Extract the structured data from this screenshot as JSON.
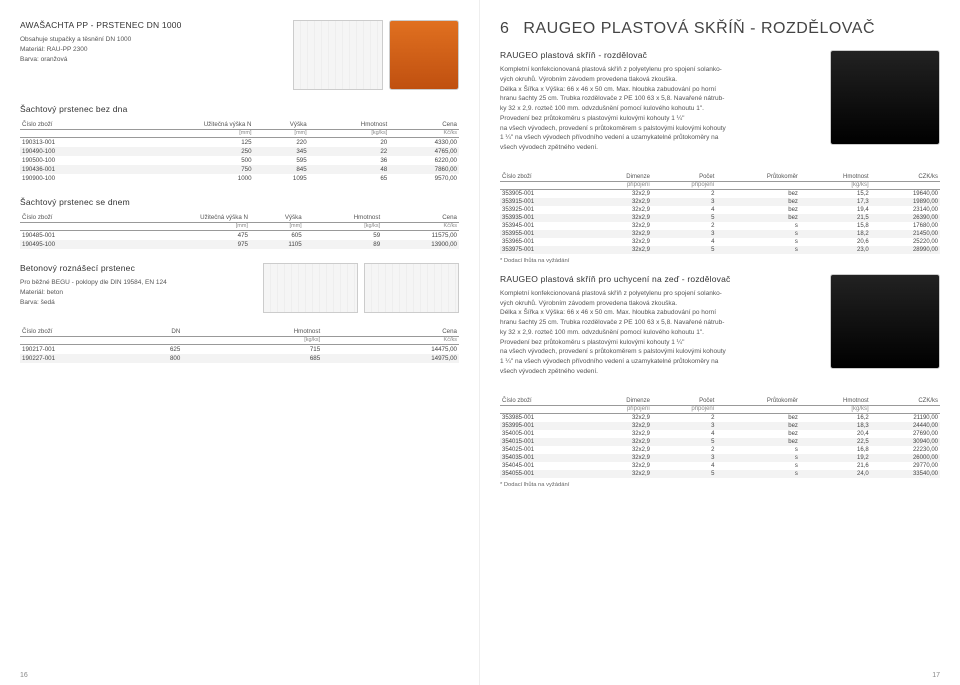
{
  "left": {
    "title": "AWAŠACHTA PP - PRSTENEC DN 1000",
    "intro": [
      "Obsahuje stupačky a těsnění DN 1000",
      "Materiál: RAU-PP 2300",
      "Barva: oranžová"
    ],
    "sec1": {
      "title": "Šachtový prstenec bez dna",
      "headers": [
        "Číslo zboží",
        "Užitečná výška N",
        "Výška",
        "Hmotnost",
        "Cena"
      ],
      "units": [
        "",
        "[mm]",
        "[mm]",
        "[kg/ks]",
        "Kč/ks"
      ],
      "rows": [
        [
          "190313-001",
          "125",
          "220",
          "20",
          "4330,00"
        ],
        [
          "190490-100",
          "250",
          "345",
          "22",
          "4765,00"
        ],
        [
          "190500-100",
          "500",
          "595",
          "36",
          "6220,00"
        ],
        [
          "190436-001",
          "750",
          "845",
          "48",
          "7860,00"
        ],
        [
          "190900-100",
          "1000",
          "1095",
          "65",
          "9570,00"
        ]
      ]
    },
    "sec2": {
      "title": "Šachtový prstenec se dnem",
      "headers": [
        "Číslo zboží",
        "Užitečná výška N",
        "Výška",
        "Hmotnost",
        "Cena"
      ],
      "units": [
        "",
        "[mm]",
        "[mm]",
        "[kg/ks]",
        "Kč/ks"
      ],
      "rows": [
        [
          "190485-001",
          "475",
          "605",
          "59",
          "11575,00"
        ],
        [
          "190495-100",
          "975",
          "1105",
          "89",
          "13900,00"
        ]
      ]
    },
    "sec3": {
      "title": "Betonový roznášecí prstenec",
      "intro": [
        "Pro běžné BEGU - poklopy dle DIN 19584, EN 124",
        "Materiál: beton",
        "Barva: šedá"
      ],
      "headers": [
        "Číslo zboží",
        "DN",
        "Hmotnost",
        "Cena"
      ],
      "units": [
        "",
        "",
        "[kg/ks]",
        "Kč/ks"
      ],
      "rows": [
        [
          "190217-001",
          "625",
          "715",
          "14475,00"
        ],
        [
          "190227-001",
          "800",
          "685",
          "14975,00"
        ]
      ]
    },
    "pagenum": "16"
  },
  "right": {
    "title_num": "6",
    "title": "RAUGEO PLASTOVÁ SKŘÍŇ - ROZDĚLOVAČ",
    "sec1": {
      "title": "RAUGEO plastová skříň - rozdělovač",
      "body": [
        "Kompletní konfekcionovaná plastová skříň z polyetylenu pro spojení solanko-",
        "vých okruhů. Výrobním závodem provedena tlaková zkouška.",
        "Délka x Šířka x Výška: 66 x 46 x 50 cm. Max. hloubka zabudování po horní",
        "hranu šachty 25 cm. Trubka rozdělovače z PE 100 63 x 5,8. Navařené nátrub-",
        "ky 32 x 2,9. rozteč 100 mm. odvzdušnění pomocí kulového kohoutu 1\".",
        "Provedení bez průtokoměru s plastovými kulovými kohouty 1 ¼\"",
        "na všech vývodech, provedení s průtokoměrem s palstovými kulovými kohouty",
        "1 ¼\" na všech vývodech přívodního vedení a uzamykatelné průtokoměry na",
        "všech vývodech zpětného vedení."
      ],
      "headers": [
        "Číslo zboží",
        "Dimenze",
        "Počet",
        "Průtokoměr",
        "Hmotnost",
        "CZK/ks"
      ],
      "units": [
        "",
        "připojení",
        "připojení",
        "",
        "[kg/ks]",
        ""
      ],
      "rows": [
        [
          "353905-001",
          "32x2,9",
          "2",
          "bez",
          "15,2",
          "19640,00"
        ],
        [
          "353915-001",
          "32x2,9",
          "3",
          "bez",
          "17,3",
          "19890,00"
        ],
        [
          "353925-001",
          "32x2,9",
          "4",
          "bez",
          "19,4",
          "23140,00"
        ],
        [
          "353935-001",
          "32x2,9",
          "5",
          "bez",
          "21,5",
          "26390,00"
        ],
        [
          "353945-001",
          "32x2,9",
          "2",
          "s",
          "15,8",
          "17680,00"
        ],
        [
          "353955-001",
          "32x2,9",
          "3",
          "s",
          "18,2",
          "21450,00"
        ],
        [
          "353965-001",
          "32x2,9",
          "4",
          "s",
          "20,6",
          "25220,00"
        ],
        [
          "353975-001",
          "32x2,9",
          "5",
          "s",
          "23,0",
          "28990,00"
        ]
      ],
      "footnote": "* Dodací lhůta na vyžádání"
    },
    "sec2": {
      "title": "RAUGEO plastová skříň pro uchycení na zeď - rozdělovač",
      "body": [
        "Kompletní konfekcionovaná plastová skříň z polyetylenu pro spojení solanko-",
        "vých okruhů. Výrobním závodem provedena tlaková zkouška.",
        "Délka x Šířka x Výška: 66 x 46 x 50 cm. Max. hloubka zabudování po horní",
        "hranu šachty 25 cm. Trubka rozdělovače z PE 100 63 x 5,8. Navařené nátrub-",
        "ky 32 x 2,9. rozteč 100 mm. odvzdušnění pomocí kulového kohoutu 1\".",
        "Provedení bez průtokoměru s plastovými kulovými kohouty 1 ¼\"",
        "na všech vývodech, provedení s průtokoměrem s palstovými kulovými kohouty",
        "1 ¼\" na všech vývodech přívodního vedení a uzamykatelné průtokoměry na",
        "všech vývodech zpětného vedení."
      ],
      "headers": [
        "Číslo zboží",
        "Dimenze",
        "Počet",
        "Průtokoměr",
        "Hmotnost",
        "CZK/ks"
      ],
      "units": [
        "",
        "připojení",
        "připojení",
        "",
        "[kg/ks]",
        ""
      ],
      "rows": [
        [
          "353985-001",
          "32x2,9",
          "2",
          "bez",
          "16,2",
          "21190,00"
        ],
        [
          "353995-001",
          "32x2,9",
          "3",
          "bez",
          "18,3",
          "24440,00"
        ],
        [
          "354005-001",
          "32x2,9",
          "4",
          "bez",
          "20,4",
          "27690,00"
        ],
        [
          "354015-001",
          "32x2,9",
          "5",
          "bez",
          "22,5",
          "30940,00"
        ],
        [
          "354025-001",
          "32x2,9",
          "2",
          "s",
          "16,8",
          "22230,00"
        ],
        [
          "354035-001",
          "32x2,9",
          "3",
          "s",
          "19,2",
          "26000,00"
        ],
        [
          "354045-001",
          "32x2,9",
          "4",
          "s",
          "21,6",
          "29770,00"
        ],
        [
          "354055-001",
          "32x2,9",
          "5",
          "s",
          "24,0",
          "33540,00"
        ]
      ],
      "footnote": "* Dodací lhůta na vyžádání"
    },
    "pagenum": "17"
  }
}
